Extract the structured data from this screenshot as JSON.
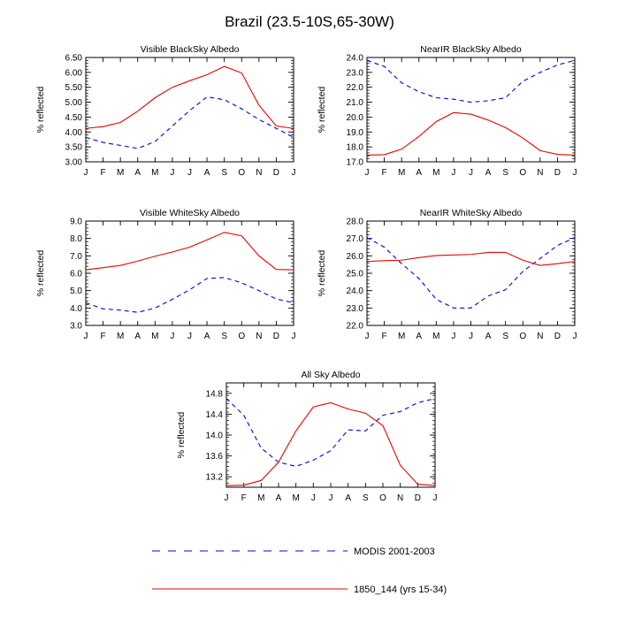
{
  "title": "Brazil (23.5-10S,65-30W)",
  "legend": {
    "placement": "bottom-center",
    "entries": [
      {
        "label": "MODIS 2001-2003",
        "color": "#0000ee",
        "dash": "dashed"
      },
      {
        "label": "1850_144 (yrs 15-34)",
        "color": "#ee0000",
        "dash": "solid"
      }
    ]
  },
  "chart_data": [
    {
      "type": "line",
      "title": "Visible BlackSky Albedo",
      "ylabel": "% reflected",
      "categories": [
        "J",
        "F",
        "M",
        "A",
        "M",
        "J",
        "J",
        "A",
        "S",
        "O",
        "N",
        "D",
        "J"
      ],
      "yticks": [
        "3.00",
        "3.50",
        "4.00",
        "4.50",
        "5.00",
        "5.50",
        "6.00",
        "6.50"
      ],
      "ylim": [
        3.0,
        6.5
      ],
      "series": [
        {
          "name": "MODIS 2001-2003",
          "color": "#0000ee",
          "dash": "dashed",
          "values": [
            3.82,
            3.65,
            3.55,
            3.45,
            3.68,
            4.2,
            4.72,
            5.18,
            5.08,
            4.78,
            4.42,
            4.12,
            3.82
          ]
        },
        {
          "name": "1850_144 (yrs 15-34)",
          "color": "#ee0000",
          "dash": "solid",
          "values": [
            4.12,
            4.18,
            4.32,
            4.7,
            5.15,
            5.5,
            5.72,
            5.92,
            6.2,
            5.98,
            4.9,
            4.2,
            4.12
          ]
        }
      ]
    },
    {
      "type": "line",
      "title": "NearIR BlackSky Albedo",
      "ylabel": "% reflected",
      "categories": [
        "J",
        "F",
        "M",
        "A",
        "M",
        "J",
        "J",
        "A",
        "S",
        "O",
        "N",
        "D",
        "J"
      ],
      "yticks": [
        "17.0",
        "18.0",
        "19.0",
        "20.0",
        "21.0",
        "22.0",
        "23.0",
        "24.0"
      ],
      "ylim": [
        17.0,
        24.0
      ],
      "series": [
        {
          "name": "MODIS 2001-2003",
          "color": "#0000ee",
          "dash": "dashed",
          "values": [
            23.8,
            23.4,
            22.3,
            21.7,
            21.3,
            21.2,
            21.0,
            21.1,
            21.3,
            22.4,
            23.0,
            23.5,
            23.8
          ]
        },
        {
          "name": "1850_144 (yrs 15-34)",
          "color": "#ee0000",
          "dash": "solid",
          "values": [
            17.45,
            17.48,
            17.85,
            18.7,
            19.7,
            20.3,
            20.2,
            19.8,
            19.3,
            18.6,
            17.75,
            17.5,
            17.45
          ]
        }
      ]
    },
    {
      "type": "line",
      "title": "Visible WhiteSky Albedo",
      "ylabel": "% reflected",
      "categories": [
        "J",
        "F",
        "M",
        "A",
        "M",
        "J",
        "J",
        "A",
        "S",
        "O",
        "N",
        "D",
        "J"
      ],
      "yticks": [
        "3.0",
        "4.0",
        "5.0",
        "6.0",
        "7.0",
        "8.0",
        "9.0"
      ],
      "ylim": [
        3.0,
        9.0
      ],
      "series": [
        {
          "name": "MODIS 2001-2003",
          "color": "#0000ee",
          "dash": "dashed",
          "values": [
            4.3,
            3.95,
            3.88,
            3.75,
            4.0,
            4.5,
            5.05,
            5.7,
            5.75,
            5.45,
            5.0,
            4.52,
            4.3
          ]
        },
        {
          "name": "1850_144 (yrs 15-34)",
          "color": "#ee0000",
          "dash": "solid",
          "values": [
            6.2,
            6.32,
            6.45,
            6.7,
            6.98,
            7.22,
            7.5,
            7.92,
            8.35,
            8.15,
            7.0,
            6.22,
            6.2
          ]
        }
      ]
    },
    {
      "type": "line",
      "title": "NearIR WhiteSky Albedo",
      "ylabel": "% reflected",
      "categories": [
        "J",
        "F",
        "M",
        "A",
        "M",
        "J",
        "J",
        "A",
        "S",
        "O",
        "N",
        "D",
        "J"
      ],
      "yticks": [
        "22.0",
        "23.0",
        "24.0",
        "25.0",
        "26.0",
        "27.0",
        "28.0"
      ],
      "ylim": [
        22.0,
        28.0
      ],
      "series": [
        {
          "name": "MODIS 2001-2003",
          "color": "#0000ee",
          "dash": "dashed",
          "values": [
            27.05,
            26.5,
            25.55,
            24.7,
            23.5,
            23.0,
            23.0,
            23.7,
            24.05,
            25.1,
            25.85,
            26.6,
            27.05
          ]
        },
        {
          "name": "1850_144 (yrs 15-34)",
          "color": "#ee0000",
          "dash": "solid",
          "values": [
            25.68,
            25.72,
            25.75,
            25.9,
            26.02,
            26.05,
            26.08,
            26.2,
            26.2,
            25.75,
            25.45,
            25.55,
            25.68
          ]
        }
      ]
    },
    {
      "type": "line",
      "title": "All Sky Albedo",
      "ylabel": "% reflected",
      "categories": [
        "J",
        "F",
        "M",
        "A",
        "M",
        "J",
        "J",
        "A",
        "S",
        "O",
        "N",
        "D",
        "J"
      ],
      "yticks": [
        "13.2",
        "13.6",
        "14.0",
        "14.4",
        "14.8"
      ],
      "ylim": [
        13.0,
        15.0
      ],
      "series": [
        {
          "name": "MODIS 2001-2003",
          "color": "#0000ee",
          "dash": "dashed",
          "values": [
            14.7,
            14.38,
            13.75,
            13.48,
            13.4,
            13.52,
            13.7,
            14.1,
            14.08,
            14.38,
            14.45,
            14.62,
            14.7
          ]
        },
        {
          "name": "1850_144 (yrs 15-34)",
          "color": "#ee0000",
          "dash": "solid",
          "values": [
            13.03,
            13.04,
            13.13,
            13.48,
            14.08,
            14.54,
            14.62,
            14.5,
            14.42,
            14.18,
            13.42,
            13.06,
            13.03
          ]
        }
      ]
    }
  ]
}
